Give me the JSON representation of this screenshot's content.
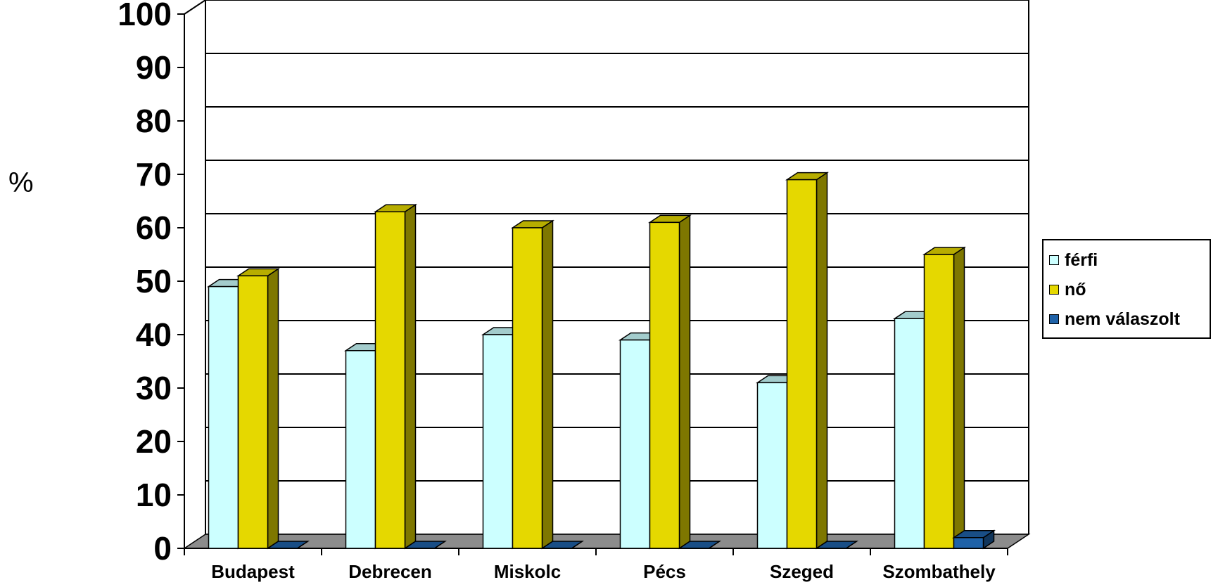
{
  "chart_data": {
    "type": "bar",
    "title": "",
    "xlabel": "",
    "ylabel": "%",
    "ylim": [
      0,
      100
    ],
    "yticks": [
      "0",
      "10",
      "20",
      "30",
      "40",
      "50",
      "60",
      "70",
      "80",
      "90",
      "100"
    ],
    "grid": true,
    "legend_position": "right",
    "categories": [
      "Budapest",
      "Debrecen",
      "Miskolc",
      "Pécs",
      "Szeged",
      "Szombathely"
    ],
    "series": [
      {
        "name": "férfi",
        "color": "#CCFFFF",
        "values": [
          49,
          37,
          40,
          39,
          31,
          43
        ]
      },
      {
        "name": "nő",
        "color": "#E5D800",
        "values": [
          51,
          63,
          60,
          61,
          69,
          55
        ]
      },
      {
        "name": "nem válaszolt",
        "color": "#1F62A8",
        "values": [
          0,
          0,
          0,
          0,
          0,
          2
        ]
      }
    ]
  },
  "colors": {
    "floor": "#8C8C8C",
    "grid": "#000000"
  }
}
